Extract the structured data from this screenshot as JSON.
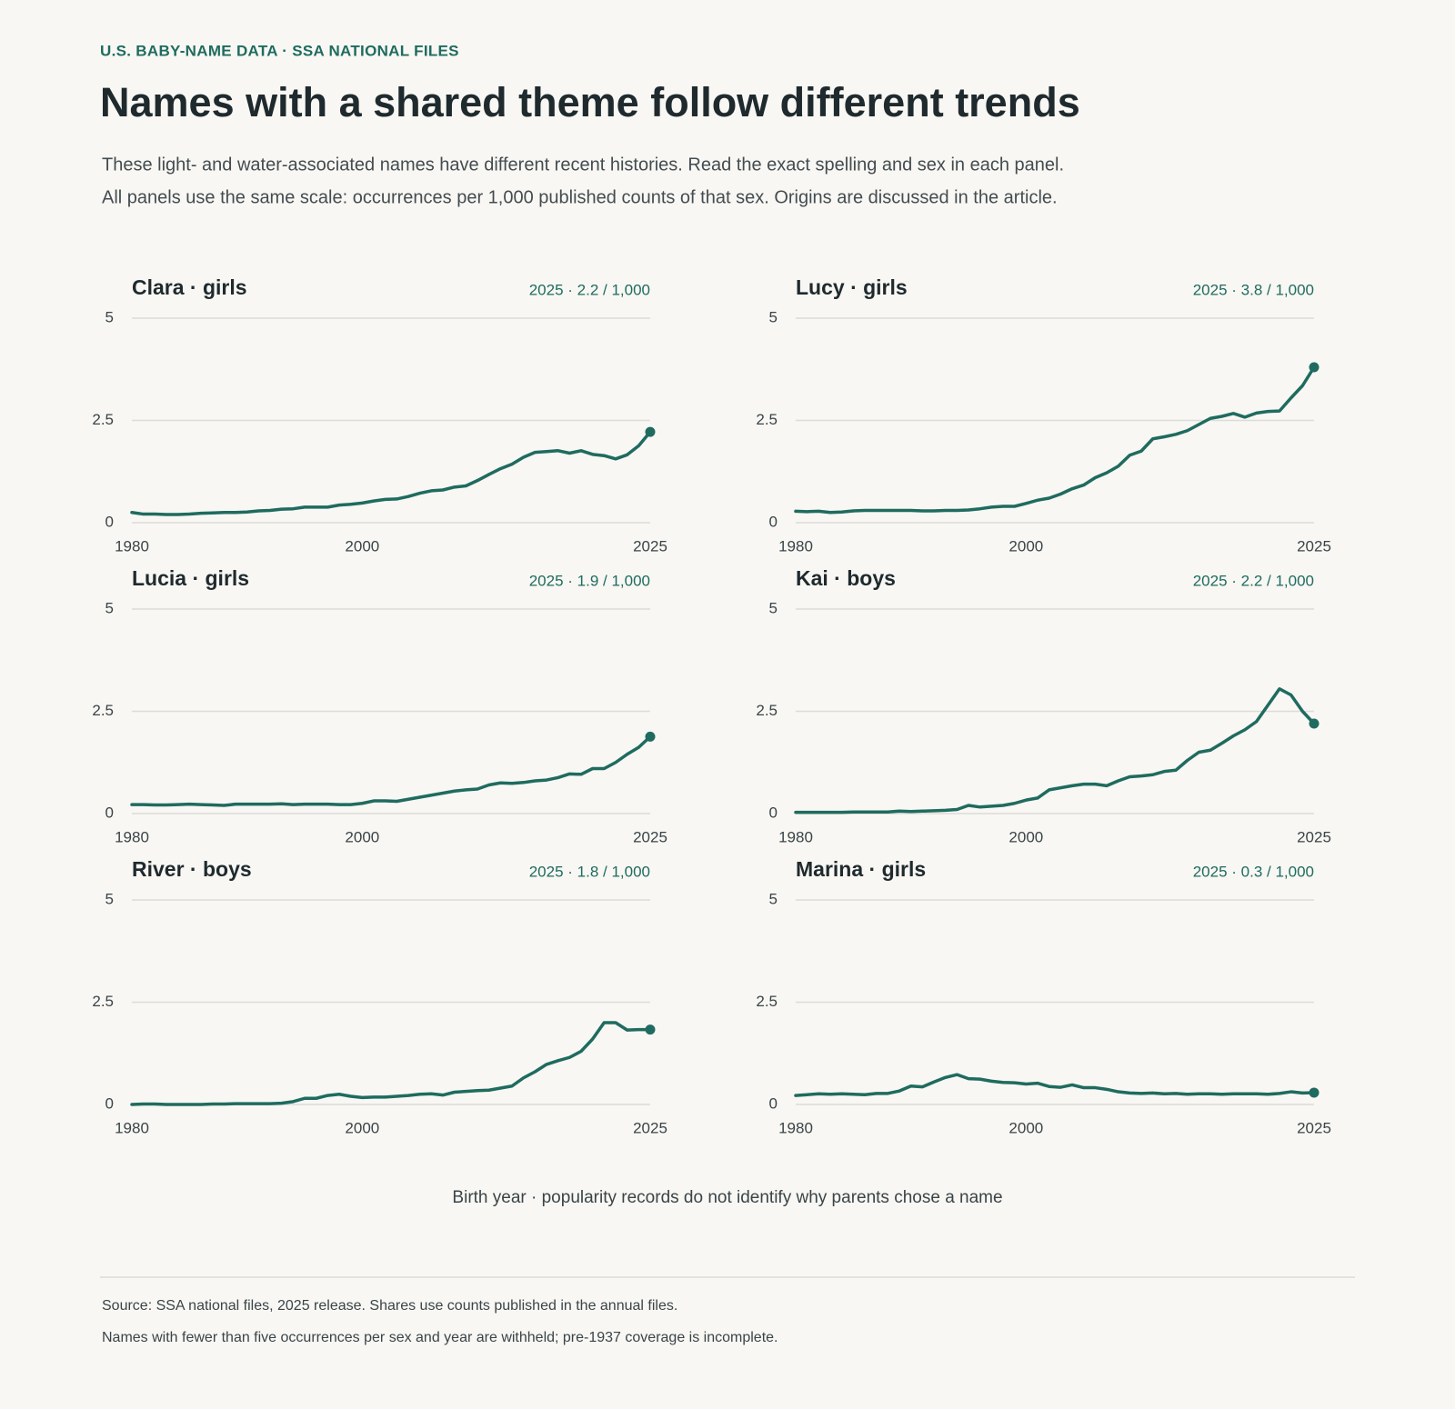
{
  "header": {
    "kicker": "U.S. BABY-NAME DATA · SSA NATIONAL FILES",
    "title": "Names with a shared theme follow different trends",
    "subtitle": [
      "These light- and water-associated names have different recent histories. Read the exact spelling and sex in each panel.",
      "All panels use the same scale: occurrences per 1,000 published counts of that sex. Origins are discussed in the article."
    ]
  },
  "chart_data": [
    {
      "type": "line",
      "title": "Clara · girls",
      "annotation": "2025 · 2.2 / 1,000",
      "color": "#1f6b5f",
      "grid": true,
      "x": [
        1980,
        1981,
        1982,
        1983,
        1984,
        1985,
        1986,
        1987,
        1988,
        1989,
        1990,
        1991,
        1992,
        1993,
        1994,
        1995,
        1996,
        1997,
        1998,
        1999,
        2000,
        2001,
        2002,
        2003,
        2004,
        2005,
        2006,
        2007,
        2008,
        2009,
        2010,
        2011,
        2012,
        2013,
        2014,
        2015,
        2016,
        2017,
        2018,
        2019,
        2020,
        2021,
        2022,
        2023,
        2024,
        2025
      ],
      "values": [
        0.25,
        0.21,
        0.21,
        0.2,
        0.2,
        0.21,
        0.23,
        0.24,
        0.25,
        0.25,
        0.26,
        0.29,
        0.3,
        0.33,
        0.34,
        0.38,
        0.38,
        0.38,
        0.43,
        0.45,
        0.48,
        0.53,
        0.57,
        0.58,
        0.64,
        0.72,
        0.78,
        0.8,
        0.87,
        0.9,
        1.03,
        1.18,
        1.32,
        1.43,
        1.6,
        1.72,
        1.74,
        1.76,
        1.7,
        1.76,
        1.67,
        1.64,
        1.56,
        1.66,
        1.88,
        2.22
      ],
      "xlim": [
        1980,
        2025
      ],
      "xticks": [
        1980,
        2000,
        2025
      ],
      "ylim": [
        0,
        5
      ],
      "yticks": [
        0,
        2.5,
        5
      ]
    },
    {
      "type": "line",
      "title": "Lucy · girls",
      "annotation": "2025 · 3.8 / 1,000",
      "color": "#1f6b5f",
      "grid": true,
      "x": [
        1980,
        1981,
        1982,
        1983,
        1984,
        1985,
        1986,
        1987,
        1988,
        1989,
        1990,
        1991,
        1992,
        1993,
        1994,
        1995,
        1996,
        1997,
        1998,
        1999,
        2000,
        2001,
        2002,
        2003,
        2004,
        2005,
        2006,
        2007,
        2008,
        2009,
        2010,
        2011,
        2012,
        2013,
        2014,
        2015,
        2016,
        2017,
        2018,
        2019,
        2020,
        2021,
        2022,
        2023,
        2024,
        2025
      ],
      "values": [
        0.28,
        0.27,
        0.28,
        0.25,
        0.26,
        0.29,
        0.3,
        0.3,
        0.3,
        0.3,
        0.3,
        0.29,
        0.29,
        0.3,
        0.3,
        0.31,
        0.34,
        0.38,
        0.4,
        0.4,
        0.47,
        0.55,
        0.6,
        0.7,
        0.83,
        0.92,
        1.1,
        1.22,
        1.38,
        1.65,
        1.75,
        2.05,
        2.1,
        2.16,
        2.25,
        2.4,
        2.55,
        2.6,
        2.67,
        2.58,
        2.68,
        2.72,
        2.73,
        3.05,
        3.35,
        3.8
      ],
      "xlim": [
        1980,
        2025
      ],
      "xticks": [
        1980,
        2000,
        2025
      ],
      "ylim": [
        0,
        5
      ],
      "yticks": [
        0,
        2.5,
        5
      ]
    },
    {
      "type": "line",
      "title": "Lucia · girls",
      "annotation": "2025 · 1.9 / 1,000",
      "color": "#1f6b5f",
      "grid": true,
      "x": [
        1980,
        1981,
        1982,
        1983,
        1984,
        1985,
        1986,
        1987,
        1988,
        1989,
        1990,
        1991,
        1992,
        1993,
        1994,
        1995,
        1996,
        1997,
        1998,
        1999,
        2000,
        2001,
        2002,
        2003,
        2004,
        2005,
        2006,
        2007,
        2008,
        2009,
        2010,
        2011,
        2012,
        2013,
        2014,
        2015,
        2016,
        2017,
        2018,
        2019,
        2020,
        2021,
        2022,
        2023,
        2024,
        2025
      ],
      "values": [
        0.22,
        0.22,
        0.21,
        0.21,
        0.22,
        0.23,
        0.22,
        0.21,
        0.2,
        0.23,
        0.23,
        0.23,
        0.23,
        0.24,
        0.22,
        0.23,
        0.23,
        0.23,
        0.22,
        0.22,
        0.25,
        0.31,
        0.31,
        0.3,
        0.35,
        0.4,
        0.45,
        0.5,
        0.55,
        0.58,
        0.6,
        0.7,
        0.75,
        0.74,
        0.76,
        0.8,
        0.82,
        0.88,
        0.97,
        0.96,
        1.1,
        1.1,
        1.25,
        1.45,
        1.62,
        1.88
      ],
      "xlim": [
        1980,
        2025
      ],
      "xticks": [
        1980,
        2000,
        2025
      ],
      "ylim": [
        0,
        5
      ],
      "yticks": [
        0,
        2.5,
        5
      ]
    },
    {
      "type": "line",
      "title": "Kai · boys",
      "annotation": "2025 · 2.2 / 1,000",
      "color": "#1f6b5f",
      "grid": true,
      "x": [
        1980,
        1981,
        1982,
        1983,
        1984,
        1985,
        1986,
        1987,
        1988,
        1989,
        1990,
        1991,
        1992,
        1993,
        1994,
        1995,
        1996,
        1997,
        1998,
        1999,
        2000,
        2001,
        2002,
        2003,
        2004,
        2005,
        2006,
        2007,
        2008,
        2009,
        2010,
        2011,
        2012,
        2013,
        2014,
        2015,
        2016,
        2017,
        2018,
        2019,
        2020,
        2021,
        2022,
        2023,
        2024,
        2025
      ],
      "values": [
        0.03,
        0.03,
        0.03,
        0.03,
        0.03,
        0.04,
        0.04,
        0.04,
        0.04,
        0.06,
        0.05,
        0.06,
        0.07,
        0.08,
        0.1,
        0.2,
        0.16,
        0.18,
        0.2,
        0.25,
        0.33,
        0.38,
        0.58,
        0.63,
        0.68,
        0.72,
        0.72,
        0.68,
        0.8,
        0.9,
        0.92,
        0.95,
        1.03,
        1.06,
        1.3,
        1.5,
        1.55,
        1.72,
        1.9,
        2.05,
        2.25,
        2.65,
        3.05,
        2.9,
        2.5,
        2.2
      ],
      "xlim": [
        1980,
        2025
      ],
      "xticks": [
        1980,
        2000,
        2025
      ],
      "ylim": [
        0,
        5
      ],
      "yticks": [
        0,
        2.5,
        5
      ]
    },
    {
      "type": "line",
      "title": "River · boys",
      "annotation": "2025 · 1.8 / 1,000",
      "color": "#1f6b5f",
      "grid": true,
      "x": [
        1980,
        1981,
        1982,
        1983,
        1984,
        1985,
        1986,
        1987,
        1988,
        1989,
        1990,
        1991,
        1992,
        1993,
        1994,
        1995,
        1996,
        1997,
        1998,
        1999,
        2000,
        2001,
        2002,
        2003,
        2004,
        2005,
        2006,
        2007,
        2008,
        2009,
        2010,
        2011,
        2012,
        2013,
        2014,
        2015,
        2016,
        2017,
        2018,
        2019,
        2020,
        2021,
        2022,
        2023,
        2024,
        2025
      ],
      "values": [
        0,
        0.01,
        0.01,
        0,
        0,
        0,
        0,
        0.01,
        0.01,
        0.02,
        0.02,
        0.02,
        0.02,
        0.03,
        0.07,
        0.15,
        0.15,
        0.22,
        0.25,
        0.2,
        0.17,
        0.18,
        0.18,
        0.2,
        0.22,
        0.25,
        0.26,
        0.23,
        0.3,
        0.32,
        0.34,
        0.35,
        0.4,
        0.45,
        0.65,
        0.8,
        0.98,
        1.07,
        1.15,
        1.3,
        1.6,
        2.0,
        2.0,
        1.82,
        1.83,
        1.83
      ],
      "xlim": [
        1980,
        2025
      ],
      "xticks": [
        1980,
        2000,
        2025
      ],
      "ylim": [
        0,
        5
      ],
      "yticks": [
        0,
        2.5,
        5
      ]
    },
    {
      "type": "line",
      "title": "Marina · girls",
      "annotation": "2025 · 0.3 / 1,000",
      "color": "#1f6b5f",
      "grid": true,
      "x": [
        1980,
        1981,
        1982,
        1983,
        1984,
        1985,
        1986,
        1987,
        1988,
        1989,
        1990,
        1991,
        1992,
        1993,
        1994,
        1995,
        1996,
        1997,
        1998,
        1999,
        2000,
        2001,
        2002,
        2003,
        2004,
        2005,
        2006,
        2007,
        2008,
        2009,
        2010,
        2011,
        2012,
        2013,
        2014,
        2015,
        2016,
        2017,
        2018,
        2019,
        2020,
        2021,
        2022,
        2023,
        2024,
        2025
      ],
      "values": [
        0.22,
        0.24,
        0.26,
        0.25,
        0.26,
        0.25,
        0.24,
        0.27,
        0.27,
        0.33,
        0.45,
        0.43,
        0.55,
        0.66,
        0.73,
        0.63,
        0.62,
        0.57,
        0.54,
        0.53,
        0.5,
        0.52,
        0.44,
        0.42,
        0.48,
        0.41,
        0.41,
        0.37,
        0.31,
        0.28,
        0.27,
        0.28,
        0.26,
        0.27,
        0.25,
        0.26,
        0.26,
        0.25,
        0.26,
        0.26,
        0.26,
        0.25,
        0.27,
        0.31,
        0.28,
        0.29
      ],
      "xlim": [
        1980,
        2025
      ],
      "xticks": [
        1980,
        2000,
        2025
      ],
      "ylim": [
        0,
        5
      ],
      "yticks": [
        0,
        2.5,
        5
      ]
    }
  ],
  "footer": {
    "caption": "Birth year · popularity records do not identify why parents chose a name",
    "source": [
      "Source: SSA national files, 2025 release. Shares use counts published in the annual files.",
      "Names with fewer than five occurrences per sex and year are withheld; pre-1937 coverage is incomplete."
    ]
  }
}
